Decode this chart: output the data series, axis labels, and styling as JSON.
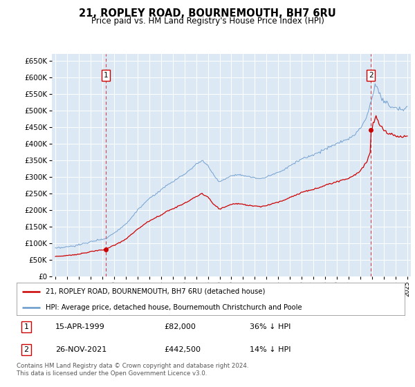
{
  "title": "21, ROPLEY ROAD, BOURNEMOUTH, BH7 6RU",
  "subtitle": "Price paid vs. HM Land Registry's House Price Index (HPI)",
  "legend_line1": "21, ROPLEY ROAD, BOURNEMOUTH, BH7 6RU (detached house)",
  "legend_line2": "HPI: Average price, detached house, Bournemouth Christchurch and Poole",
  "footer": "Contains HM Land Registry data © Crown copyright and database right 2024.\nThis data is licensed under the Open Government Licence v3.0.",
  "sale1_label": "1",
  "sale1_date": "15-APR-1999",
  "sale1_price": "£82,000",
  "sale1_hpi": "36% ↓ HPI",
  "sale1_year": 1999.29,
  "sale1_value": 82000,
  "sale2_label": "2",
  "sale2_date": "26-NOV-2021",
  "sale2_price": "£442,500",
  "sale2_hpi": "14% ↓ HPI",
  "sale2_year": 2021.9,
  "sale2_value": 442500,
  "red_color": "#cc0000",
  "blue_color": "#6699cc",
  "background_color": "#dde8f5",
  "grid_color": "#ffffff",
  "ylim_min": 0,
  "ylim_max": 670000,
  "xlim_min": 1994.7,
  "xlim_max": 2025.3,
  "ytick_step": 50000
}
